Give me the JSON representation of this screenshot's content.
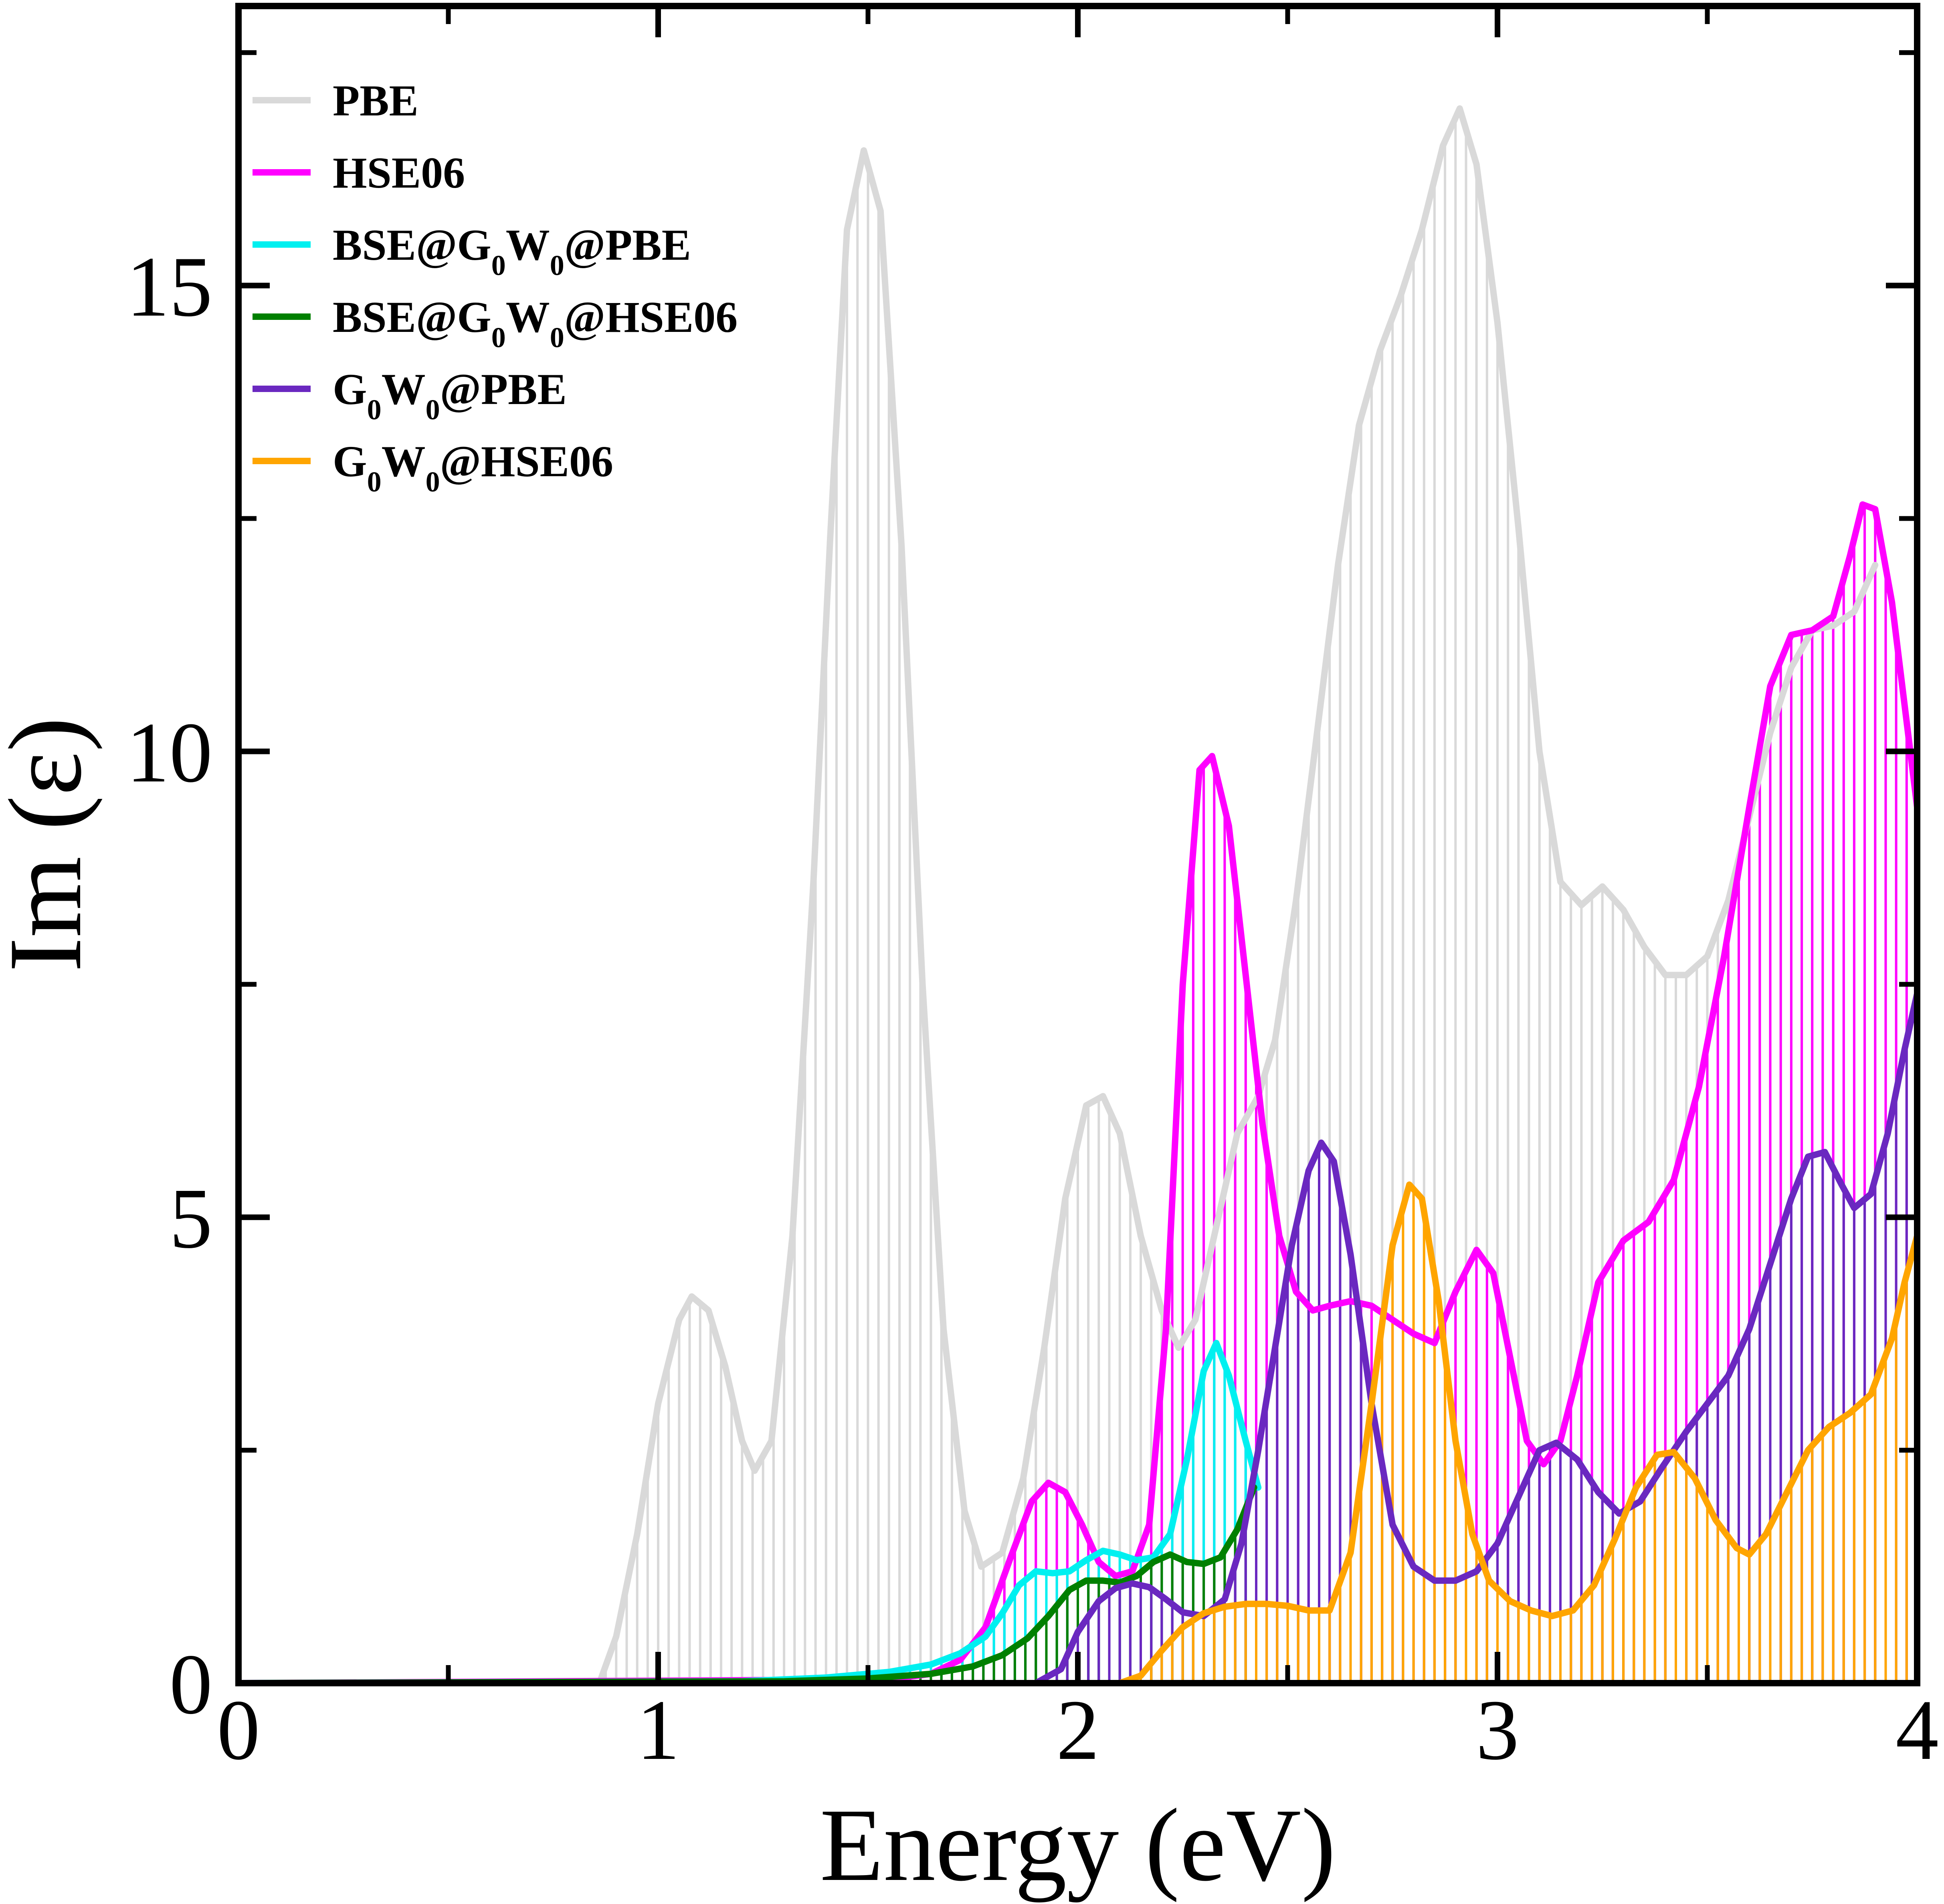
{
  "chart_data": {
    "type": "line",
    "title": "",
    "xlabel": "Energy (eV)",
    "ylabel": "Im (ε)",
    "xlim": [
      0,
      4
    ],
    "ylim": [
      0,
      18
    ],
    "x_ticks": [
      {
        "value": 0,
        "label": "0"
      },
      {
        "value": 1,
        "label": "1"
      },
      {
        "value": 2,
        "label": "2"
      },
      {
        "value": 3,
        "label": "3"
      },
      {
        "value": 4,
        "label": "4"
      }
    ],
    "y_ticks": [
      {
        "value": 0,
        "label": "0"
      },
      {
        "value": 5,
        "label": "5"
      },
      {
        "value": 10,
        "label": "10"
      },
      {
        "value": 15,
        "label": "15"
      }
    ],
    "x_minor_ticks": [
      0.5,
      1.5,
      2.5,
      3.5
    ],
    "y_minor_ticks": [
      2.5,
      7.5,
      12.5,
      17.5
    ],
    "fill_style": "vertical hatch lines under each curve",
    "legend_position": "top-left",
    "series": [
      {
        "name": "PBE",
        "legend": {
          "pre": "PBE"
        },
        "color": "#d9d9d9",
        "points": [
          [
            0.0,
            0
          ],
          [
            0.86,
            0
          ],
          [
            0.9,
            0.5
          ],
          [
            0.95,
            1.6
          ],
          [
            1.0,
            3.0
          ],
          [
            1.05,
            3.9
          ],
          [
            1.08,
            4.15
          ],
          [
            1.12,
            4.0
          ],
          [
            1.16,
            3.4
          ],
          [
            1.2,
            2.6
          ],
          [
            1.23,
            2.28
          ],
          [
            1.27,
            2.6
          ],
          [
            1.32,
            4.8
          ],
          [
            1.37,
            8.6
          ],
          [
            1.41,
            12.3
          ],
          [
            1.45,
            15.6
          ],
          [
            1.49,
            16.45
          ],
          [
            1.53,
            15.8
          ],
          [
            1.58,
            12.2
          ],
          [
            1.63,
            7.5
          ],
          [
            1.68,
            3.8
          ],
          [
            1.73,
            1.85
          ],
          [
            1.77,
            1.25
          ],
          [
            1.82,
            1.4
          ],
          [
            1.87,
            2.2
          ],
          [
            1.92,
            3.6
          ],
          [
            1.97,
            5.2
          ],
          [
            2.02,
            6.2
          ],
          [
            2.06,
            6.3
          ],
          [
            2.1,
            5.9
          ],
          [
            2.15,
            4.8
          ],
          [
            2.2,
            4.0
          ],
          [
            2.24,
            3.6
          ],
          [
            2.28,
            3.9
          ],
          [
            2.33,
            4.9
          ],
          [
            2.38,
            5.9
          ],
          [
            2.43,
            6.3
          ],
          [
            2.47,
            6.9
          ],
          [
            2.52,
            8.4
          ],
          [
            2.57,
            10.2
          ],
          [
            2.62,
            12.0
          ],
          [
            2.67,
            13.5
          ],
          [
            2.72,
            14.3
          ],
          [
            2.77,
            14.9
          ],
          [
            2.82,
            15.6
          ],
          [
            2.87,
            16.5
          ],
          [
            2.91,
            16.9
          ],
          [
            2.95,
            16.3
          ],
          [
            3.0,
            14.6
          ],
          [
            3.05,
            12.4
          ],
          [
            3.1,
            10.0
          ],
          [
            3.15,
            8.6
          ],
          [
            3.2,
            8.35
          ],
          [
            3.25,
            8.55
          ],
          [
            3.3,
            8.3
          ],
          [
            3.35,
            7.9
          ],
          [
            3.4,
            7.6
          ],
          [
            3.45,
            7.6
          ],
          [
            3.5,
            7.8
          ],
          [
            3.55,
            8.4
          ],
          [
            3.6,
            9.3
          ],
          [
            3.65,
            10.2
          ],
          [
            3.7,
            10.9
          ],
          [
            3.75,
            11.3
          ],
          [
            3.8,
            11.35
          ],
          [
            3.85,
            11.5
          ],
          [
            3.9,
            12.0
          ]
        ]
      },
      {
        "name": "HSE06",
        "legend": {
          "pre": "HSE06"
        },
        "color": "#ff00ff",
        "points": [
          [
            0.0,
            0
          ],
          [
            1.55,
            0.04
          ],
          [
            1.65,
            0.1
          ],
          [
            1.72,
            0.25
          ],
          [
            1.78,
            0.6
          ],
          [
            1.84,
            1.35
          ],
          [
            1.89,
            1.95
          ],
          [
            1.93,
            2.15
          ],
          [
            1.97,
            2.05
          ],
          [
            2.01,
            1.7
          ],
          [
            2.05,
            1.3
          ],
          [
            2.09,
            1.15
          ],
          [
            2.13,
            1.2
          ],
          [
            2.17,
            1.7
          ],
          [
            2.21,
            3.8
          ],
          [
            2.25,
            7.5
          ],
          [
            2.29,
            9.8
          ],
          [
            2.32,
            9.95
          ],
          [
            2.36,
            9.2
          ],
          [
            2.4,
            7.6
          ],
          [
            2.44,
            6.0
          ],
          [
            2.48,
            4.8
          ],
          [
            2.52,
            4.2
          ],
          [
            2.56,
            4.0
          ],
          [
            2.6,
            4.05
          ],
          [
            2.65,
            4.1
          ],
          [
            2.7,
            4.05
          ],
          [
            2.75,
            3.9
          ],
          [
            2.8,
            3.75
          ],
          [
            2.85,
            3.65
          ],
          [
            2.9,
            4.2
          ],
          [
            2.95,
            4.65
          ],
          [
            2.99,
            4.4
          ],
          [
            3.03,
            3.5
          ],
          [
            3.07,
            2.6
          ],
          [
            3.11,
            2.35
          ],
          [
            3.15,
            2.6
          ],
          [
            3.19,
            3.3
          ],
          [
            3.24,
            4.3
          ],
          [
            3.3,
            4.75
          ],
          [
            3.36,
            4.95
          ],
          [
            3.42,
            5.4
          ],
          [
            3.48,
            6.4
          ],
          [
            3.54,
            7.8
          ],
          [
            3.6,
            9.4
          ],
          [
            3.65,
            10.7
          ],
          [
            3.7,
            11.25
          ],
          [
            3.75,
            11.3
          ],
          [
            3.8,
            11.45
          ],
          [
            3.84,
            12.1
          ],
          [
            3.87,
            12.65
          ],
          [
            3.9,
            12.6
          ],
          [
            3.94,
            11.6
          ],
          [
            3.97,
            10.5
          ],
          [
            4.0,
            9.4
          ]
        ]
      },
      {
        "name": "BSE@G0W0@PBE",
        "legend": {
          "pre": "BSE@G",
          "sub1": "0",
          "mid": "W",
          "sub2": "0",
          "post": "@PBE"
        },
        "color": "#00f0f0",
        "points": [
          [
            0.0,
            0
          ],
          [
            1.2,
            0.02
          ],
          [
            1.4,
            0.06
          ],
          [
            1.55,
            0.12
          ],
          [
            1.65,
            0.2
          ],
          [
            1.72,
            0.32
          ],
          [
            1.78,
            0.5
          ],
          [
            1.82,
            0.75
          ],
          [
            1.86,
            1.05
          ],
          [
            1.9,
            1.2
          ],
          [
            1.94,
            1.18
          ],
          [
            1.98,
            1.2
          ],
          [
            2.02,
            1.32
          ],
          [
            2.06,
            1.42
          ],
          [
            2.1,
            1.38
          ],
          [
            2.14,
            1.32
          ],
          [
            2.18,
            1.35
          ],
          [
            2.22,
            1.6
          ],
          [
            2.26,
            2.4
          ],
          [
            2.3,
            3.35
          ],
          [
            2.33,
            3.65
          ],
          [
            2.36,
            3.3
          ],
          [
            2.4,
            2.6
          ],
          [
            2.43,
            2.1
          ]
        ]
      },
      {
        "name": "BSE@G0W0@HSE06",
        "legend": {
          "pre": "BSE@G",
          "sub1": "0",
          "mid": "W",
          "sub2": "0",
          "post": "@HSE06"
        },
        "color": "#008000",
        "points": [
          [
            0.0,
            0
          ],
          [
            1.3,
            0.02
          ],
          [
            1.5,
            0.05
          ],
          [
            1.65,
            0.1
          ],
          [
            1.75,
            0.18
          ],
          [
            1.82,
            0.3
          ],
          [
            1.88,
            0.48
          ],
          [
            1.93,
            0.72
          ],
          [
            1.98,
            1.0
          ],
          [
            2.02,
            1.1
          ],
          [
            2.06,
            1.1
          ],
          [
            2.1,
            1.08
          ],
          [
            2.14,
            1.15
          ],
          [
            2.18,
            1.3
          ],
          [
            2.22,
            1.38
          ],
          [
            2.26,
            1.3
          ],
          [
            2.3,
            1.28
          ],
          [
            2.34,
            1.35
          ],
          [
            2.38,
            1.65
          ],
          [
            2.42,
            2.1
          ]
        ]
      },
      {
        "name": "G0W0@PBE",
        "legend": {
          "pre": "G",
          "sub1": "0",
          "mid": "W",
          "sub2": "0",
          "post": "@PBE"
        },
        "color": "#6a28c0",
        "points": [
          [
            1.9,
            0
          ],
          [
            1.96,
            0.15
          ],
          [
            2.0,
            0.55
          ],
          [
            2.05,
            0.88
          ],
          [
            2.09,
            1.02
          ],
          [
            2.13,
            1.07
          ],
          [
            2.17,
            1.03
          ],
          [
            2.21,
            0.9
          ],
          [
            2.25,
            0.76
          ],
          [
            2.3,
            0.72
          ],
          [
            2.35,
            0.9
          ],
          [
            2.39,
            1.5
          ],
          [
            2.43,
            2.5
          ],
          [
            2.47,
            3.6
          ],
          [
            2.51,
            4.7
          ],
          [
            2.55,
            5.5
          ],
          [
            2.58,
            5.8
          ],
          [
            2.61,
            5.6
          ],
          [
            2.65,
            4.6
          ],
          [
            2.7,
            3.0
          ],
          [
            2.75,
            1.7
          ],
          [
            2.8,
            1.25
          ],
          [
            2.85,
            1.1
          ],
          [
            2.9,
            1.1
          ],
          [
            2.95,
            1.2
          ],
          [
            3.0,
            1.5
          ],
          [
            3.05,
            2.0
          ],
          [
            3.1,
            2.5
          ],
          [
            3.14,
            2.58
          ],
          [
            3.19,
            2.4
          ],
          [
            3.24,
            2.05
          ],
          [
            3.29,
            1.82
          ],
          [
            3.34,
            1.95
          ],
          [
            3.39,
            2.3
          ],
          [
            3.45,
            2.7
          ],
          [
            3.5,
            3.0
          ],
          [
            3.55,
            3.3
          ],
          [
            3.6,
            3.8
          ],
          [
            3.65,
            4.5
          ],
          [
            3.7,
            5.2
          ],
          [
            3.74,
            5.65
          ],
          [
            3.78,
            5.7
          ],
          [
            3.82,
            5.35
          ],
          [
            3.85,
            5.1
          ],
          [
            3.89,
            5.25
          ],
          [
            3.93,
            5.9
          ],
          [
            3.97,
            6.8
          ],
          [
            4.0,
            7.4
          ]
        ]
      },
      {
        "name": "G0W0@HSE06",
        "legend": {
          "pre": "G",
          "sub1": "0",
          "mid": "W",
          "sub2": "0",
          "post": "@HSE06"
        },
        "color": "#ffa500",
        "points": [
          [
            2.1,
            0
          ],
          [
            2.15,
            0.08
          ],
          [
            2.2,
            0.35
          ],
          [
            2.25,
            0.6
          ],
          [
            2.3,
            0.75
          ],
          [
            2.35,
            0.82
          ],
          [
            2.4,
            0.85
          ],
          [
            2.45,
            0.85
          ],
          [
            2.5,
            0.83
          ],
          [
            2.55,
            0.78
          ],
          [
            2.6,
            0.78
          ],
          [
            2.65,
            1.4
          ],
          [
            2.7,
            3.0
          ],
          [
            2.75,
            4.7
          ],
          [
            2.79,
            5.35
          ],
          [
            2.82,
            5.2
          ],
          [
            2.86,
            4.1
          ],
          [
            2.9,
            2.6
          ],
          [
            2.94,
            1.6
          ],
          [
            2.98,
            1.1
          ],
          [
            3.03,
            0.88
          ],
          [
            3.08,
            0.78
          ],
          [
            3.13,
            0.72
          ],
          [
            3.18,
            0.78
          ],
          [
            3.23,
            1.05
          ],
          [
            3.28,
            1.55
          ],
          [
            3.33,
            2.1
          ],
          [
            3.38,
            2.45
          ],
          [
            3.42,
            2.48
          ],
          [
            3.47,
            2.2
          ],
          [
            3.52,
            1.75
          ],
          [
            3.57,
            1.45
          ],
          [
            3.6,
            1.38
          ],
          [
            3.64,
            1.6
          ],
          [
            3.69,
            2.05
          ],
          [
            3.74,
            2.5
          ],
          [
            3.79,
            2.75
          ],
          [
            3.84,
            2.9
          ],
          [
            3.89,
            3.1
          ],
          [
            3.94,
            3.7
          ],
          [
            3.97,
            4.3
          ],
          [
            4.0,
            4.8
          ]
        ]
      }
    ]
  }
}
